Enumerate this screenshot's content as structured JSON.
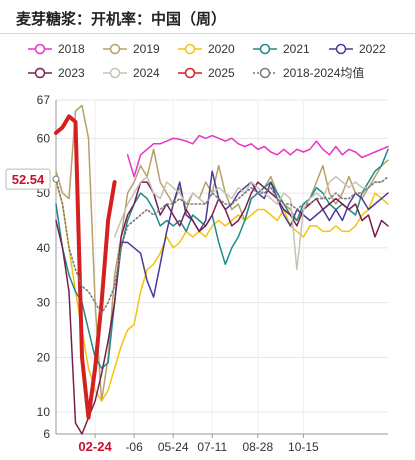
{
  "header": {
    "title": "麦芽糖浆：开机率：中国（周）"
  },
  "chart_data": {
    "type": "line",
    "title": "麦芽糖浆：开机率：中国（周）",
    "xlabel": "",
    "ylabel": "",
    "ylim": [
      6,
      67
    ],
    "yticks": [
      6,
      10,
      20,
      30,
      40,
      50,
      60,
      67
    ],
    "x": [
      1,
      2,
      3,
      4,
      5,
      6,
      7,
      8,
      9,
      10,
      11,
      12,
      13,
      14,
      15,
      16,
      17,
      18,
      19,
      20,
      21,
      22,
      23,
      24,
      25,
      26,
      27,
      28,
      29,
      30,
      31,
      32,
      33,
      34,
      35,
      36,
      37,
      38,
      39,
      40,
      41,
      42,
      43,
      44,
      45,
      46,
      47,
      48,
      49,
      50,
      51,
      52
    ],
    "xticks": [
      {
        "x": 7,
        "label": "02-24",
        "highlight": true
      },
      {
        "x": 13,
        "label": "-06"
      },
      {
        "x": 19,
        "label": "05-24"
      },
      {
        "x": 25,
        "label": "07-11"
      },
      {
        "x": 32,
        "label": "08-28"
      },
      {
        "x": 39,
        "label": "10-15"
      }
    ],
    "highlight_value": {
      "label": "52.54",
      "value": 52.54
    },
    "grid": true,
    "legend": "top",
    "series": [
      {
        "name": "2018",
        "color": "#e834c4",
        "values": [
          null,
          null,
          null,
          null,
          null,
          null,
          null,
          null,
          null,
          null,
          null,
          57,
          53,
          57,
          58,
          59,
          59,
          59.5,
          60,
          59.8,
          59.5,
          59,
          60.5,
          60,
          60.5,
          60,
          59.5,
          60,
          59,
          58.5,
          59,
          58,
          58.5,
          57.5,
          57,
          58,
          57,
          58,
          57.5,
          58,
          59.5,
          58,
          57,
          58.5,
          57,
          58,
          57.5,
          56.5,
          57,
          57.5,
          58,
          58.5
        ]
      },
      {
        "name": "2019",
        "color": "#b5a26a",
        "values": [
          54,
          50,
          49,
          65,
          66,
          60,
          30,
          12,
          20,
          35,
          42,
          50,
          52,
          55,
          53,
          58,
          52,
          50,
          48,
          51,
          47,
          50,
          49,
          52,
          50,
          55,
          50,
          47,
          48,
          45,
          49,
          50,
          51,
          53,
          50,
          48,
          47,
          45,
          47,
          49,
          52,
          55,
          50,
          48,
          50,
          53,
          50,
          49,
          51,
          53,
          55,
          56
        ]
      },
      {
        "name": "2020",
        "color": "#f2c40f",
        "values": [
          52,
          48,
          40,
          32,
          25,
          18,
          14,
          12,
          14,
          18,
          22,
          25,
          26,
          32,
          36,
          37,
          39,
          42,
          40,
          41,
          43,
          42,
          43,
          42,
          44,
          45,
          44,
          45,
          46,
          45,
          46,
          47,
          47,
          46,
          45,
          47,
          44,
          43,
          42,
          44,
          44,
          43,
          43,
          44,
          43,
          43,
          44,
          46,
          47,
          50,
          49,
          48
        ]
      },
      {
        "name": "2021",
        "color": "#1f8a8a",
        "values": [
          48,
          40,
          35,
          32,
          30,
          25,
          20,
          18,
          19,
          30,
          40,
          45,
          48,
          50,
          49,
          47,
          44,
          45,
          44,
          45,
          43,
          46,
          45,
          44,
          46,
          41,
          37,
          40,
          42,
          45,
          49,
          50,
          51,
          52,
          50,
          48,
          46,
          45,
          48,
          49,
          51,
          50,
          48,
          47,
          48,
          47,
          46,
          50,
          52,
          54,
          55,
          58
        ]
      },
      {
        "name": "2022",
        "color": "#4a3a9a",
        "values": [
          null,
          null,
          null,
          null,
          null,
          null,
          null,
          null,
          null,
          null,
          41,
          41,
          40,
          39,
          34,
          31,
          37,
          43,
          48,
          52,
          46,
          45,
          43,
          45,
          54,
          49,
          47,
          48,
          50,
          51,
          52,
          50,
          49,
          52,
          49,
          46,
          44,
          47,
          46,
          45,
          46,
          47,
          45,
          47,
          45,
          48,
          50,
          49,
          47,
          48,
          49,
          50
        ]
      },
      {
        "name": "2023",
        "color": "#7a1e50",
        "values": [
          45,
          40,
          32,
          8,
          6,
          9,
          12,
          17,
          23,
          30,
          42,
          46,
          48,
          52,
          52,
          50,
          46,
          48,
          46,
          44,
          47,
          45,
          43,
          44,
          46,
          49,
          47,
          44,
          45,
          47,
          50,
          52,
          51,
          50,
          49,
          47,
          46,
          44,
          47,
          48,
          49,
          47,
          48,
          49,
          48,
          47,
          48,
          45,
          46,
          42,
          45,
          44
        ]
      },
      {
        "name": "2024",
        "color": "#c9c1b3",
        "values": [
          null,
          null,
          null,
          null,
          null,
          null,
          null,
          null,
          null,
          42,
          45,
          48,
          50,
          52,
          53,
          50,
          49,
          52,
          51,
          50,
          48,
          50,
          49,
          48,
          50,
          51,
          50,
          49,
          51,
          50,
          52,
          51,
          50,
          49,
          48,
          50,
          49,
          36,
          47,
          49,
          50,
          49,
          52,
          53,
          52,
          51,
          52,
          51,
          51,
          52,
          52,
          null
        ]
      },
      {
        "name": "2025",
        "color": "#d42020",
        "values": [
          61,
          62,
          64,
          63,
          20,
          9,
          18,
          30,
          45,
          52,
          null,
          null,
          null,
          null,
          null,
          null,
          null,
          null,
          null,
          null,
          null,
          null,
          null,
          null,
          null,
          null,
          null,
          null,
          null,
          null,
          null,
          null,
          null,
          null,
          null,
          null,
          null,
          null,
          null,
          null,
          null,
          null,
          null,
          null,
          null,
          null,
          null,
          null,
          null,
          null,
          null,
          null
        ]
      },
      {
        "name": "2018-2024均值",
        "color": "#7a7a7a",
        "dashed": true,
        "values": [
          52.54,
          48,
          40,
          36,
          33,
          32,
          30,
          28,
          30,
          33,
          40,
          44,
          45,
          46,
          47,
          46,
          47,
          48,
          48,
          49,
          48,
          48,
          48,
          48,
          50,
          49,
          48,
          48,
          49,
          50,
          51,
          50,
          50,
          51,
          49,
          48,
          48,
          47,
          48,
          48,
          49,
          49,
          49,
          50,
          49,
          49,
          50,
          50,
          51,
          52,
          52,
          53
        ]
      }
    ]
  }
}
